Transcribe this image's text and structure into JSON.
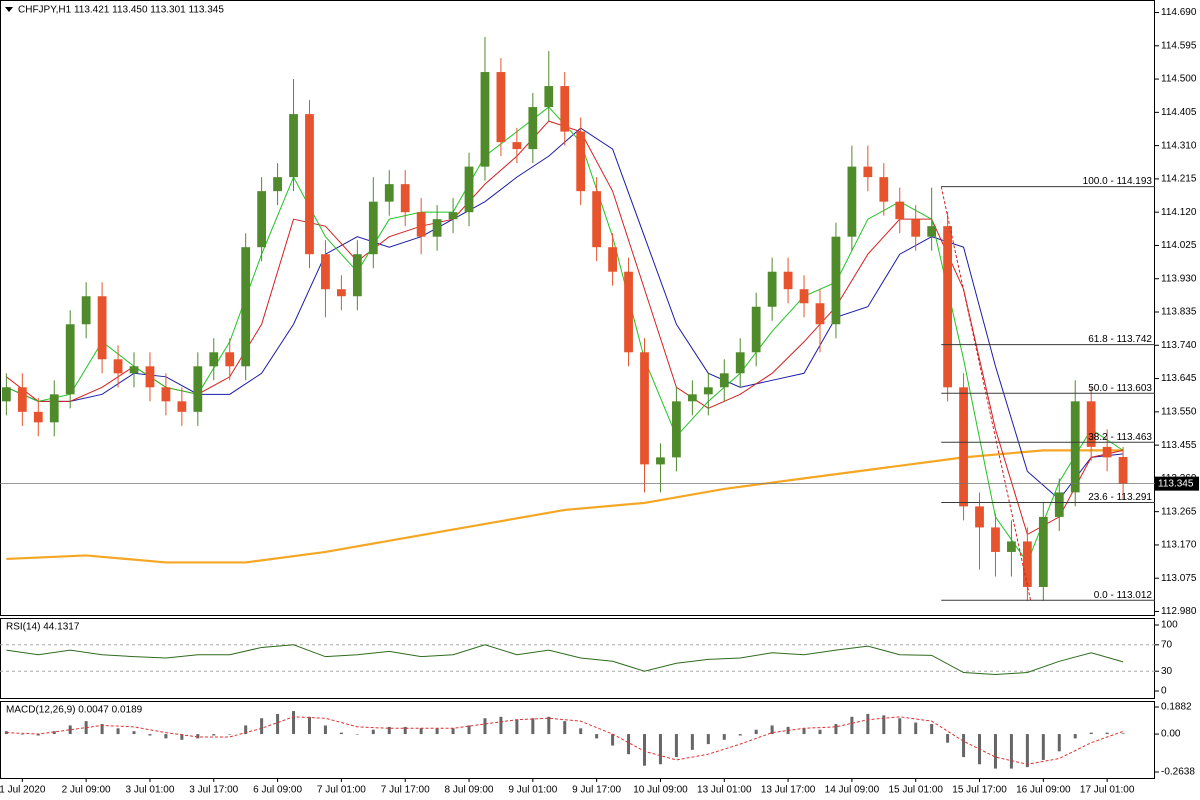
{
  "chart_data": [
    {
      "type": "candlestick",
      "title": "CHFJPY,H1  113.421 113.450 113.301 113.345",
      "x": [
        0,
        1,
        2,
        3,
        4,
        5,
        6,
        7,
        8,
        9,
        10,
        11,
        12,
        13,
        14,
        15,
        16,
        17,
        18,
        19,
        20,
        21,
        22,
        23,
        24,
        25,
        26,
        27,
        28,
        29,
        30,
        31,
        32,
        33,
        34,
        35,
        36,
        37,
        38,
        39,
        40,
        41,
        42,
        43,
        44,
        45,
        46,
        47,
        48,
        49,
        50,
        51,
        52,
        53,
        54,
        55,
        56,
        57,
        58,
        59,
        60,
        61,
        62,
        63,
        64,
        65,
        66,
        67,
        68,
        69,
        70
      ],
      "open": [
        113.58,
        113.62,
        113.55,
        113.52,
        113.6,
        113.8,
        113.88,
        113.7,
        113.66,
        113.68,
        113.62,
        113.58,
        113.55,
        113.68,
        113.72,
        113.68,
        114.02,
        114.18,
        114.22,
        114.4,
        114.0,
        113.9,
        113.88,
        114.0,
        114.15,
        114.2,
        114.12,
        114.05,
        114.1,
        114.12,
        114.25,
        114.52,
        114.32,
        114.3,
        114.42,
        114.48,
        114.35,
        114.18,
        114.02,
        113.95,
        113.72,
        113.4,
        113.42,
        113.58,
        113.6,
        113.62,
        113.66,
        113.72,
        113.85,
        113.95,
        113.9,
        113.86,
        113.8,
        114.05,
        114.25,
        114.22,
        114.15,
        114.1,
        114.05,
        114.08,
        113.62,
        113.28,
        113.22,
        113.15,
        113.18,
        113.05,
        113.25,
        113.32,
        113.58,
        113.45,
        113.421
      ],
      "high": [
        113.66,
        113.66,
        113.59,
        113.64,
        113.84,
        113.92,
        113.92,
        113.74,
        113.72,
        113.72,
        113.66,
        113.62,
        113.72,
        113.76,
        113.76,
        114.06,
        114.22,
        114.26,
        114.5,
        114.44,
        114.04,
        113.94,
        114.04,
        114.22,
        114.24,
        114.24,
        114.16,
        114.14,
        114.16,
        114.29,
        114.62,
        114.56,
        114.36,
        114.46,
        114.58,
        114.52,
        114.39,
        114.22,
        114.06,
        113.99,
        113.76,
        113.46,
        113.62,
        113.64,
        113.66,
        113.7,
        113.76,
        113.89,
        113.99,
        113.99,
        113.94,
        113.9,
        114.09,
        114.31,
        114.31,
        114.26,
        114.19,
        114.14,
        114.19,
        114.12,
        113.66,
        113.32,
        113.26,
        113.24,
        113.22,
        113.29,
        113.36,
        113.64,
        113.62,
        113.5,
        113.45
      ],
      "low": [
        113.54,
        113.51,
        113.48,
        113.48,
        113.56,
        113.76,
        113.66,
        113.62,
        113.62,
        113.58,
        113.54,
        113.51,
        113.51,
        113.64,
        113.64,
        113.64,
        113.98,
        114.14,
        114.18,
        113.96,
        113.82,
        113.84,
        113.84,
        113.96,
        114.11,
        114.08,
        114.0,
        114.01,
        114.06,
        114.08,
        114.21,
        114.28,
        114.26,
        114.26,
        114.38,
        114.31,
        114.14,
        113.98,
        113.91,
        113.68,
        113.32,
        113.32,
        113.38,
        113.54,
        113.54,
        113.58,
        113.62,
        113.68,
        113.81,
        113.86,
        113.82,
        113.72,
        113.76,
        114.01,
        114.18,
        114.11,
        114.06,
        114.01,
        114.01,
        113.58,
        113.24,
        113.1,
        113.08,
        113.08,
        113.01,
        113.01,
        113.21,
        113.28,
        113.41,
        113.38,
        113.301
      ],
      "close": [
        113.62,
        113.55,
        113.52,
        113.6,
        113.8,
        113.88,
        113.7,
        113.66,
        113.68,
        113.62,
        113.58,
        113.55,
        113.68,
        113.72,
        113.68,
        114.02,
        114.18,
        114.22,
        114.4,
        114.0,
        113.9,
        113.88,
        114.0,
        114.15,
        114.2,
        114.12,
        114.05,
        114.1,
        114.12,
        114.25,
        114.52,
        114.32,
        114.3,
        114.42,
        114.48,
        114.35,
        114.18,
        114.02,
        113.95,
        113.72,
        113.4,
        113.42,
        113.58,
        113.6,
        113.62,
        113.66,
        113.72,
        113.85,
        113.95,
        113.9,
        113.86,
        113.8,
        114.05,
        114.25,
        114.22,
        114.15,
        114.1,
        114.05,
        114.08,
        113.62,
        113.28,
        113.22,
        113.15,
        113.18,
        113.05,
        113.25,
        113.32,
        113.58,
        113.45,
        113.42,
        113.345
      ],
      "up_color": "#4f8a2b",
      "down_color": "#e6532c",
      "lines": [
        {
          "color": "#f5a623",
          "width": 2.2,
          "x": [
            0,
            5,
            10,
            15,
            20,
            25,
            30,
            35,
            40,
            45,
            50,
            55,
            60,
            65,
            70
          ],
          "values": [
            113.13,
            113.14,
            113.12,
            113.12,
            113.15,
            113.19,
            113.23,
            113.27,
            113.29,
            113.33,
            113.36,
            113.39,
            113.42,
            113.44,
            113.44
          ]
        },
        {
          "color": "#1c1ca8",
          "width": 1,
          "x": [
            0,
            2,
            4,
            6,
            8,
            10,
            12,
            14,
            16,
            18,
            20,
            22,
            24,
            26,
            28,
            30,
            32,
            34,
            36,
            38,
            40,
            42,
            44,
            46,
            48,
            50,
            52,
            54,
            56,
            58,
            60,
            62,
            64,
            66,
            68,
            70
          ],
          "values": [
            113.62,
            113.58,
            113.58,
            113.6,
            113.66,
            113.65,
            113.6,
            113.6,
            113.66,
            113.8,
            114.0,
            114.05,
            114.02,
            114.05,
            114.1,
            114.15,
            114.22,
            114.28,
            114.36,
            114.3,
            114.05,
            113.8,
            113.66,
            113.62,
            113.64,
            113.66,
            113.82,
            113.85,
            114.0,
            114.05,
            114.02,
            113.68,
            113.38,
            113.3,
            113.42,
            113.43
          ]
        },
        {
          "color": "#d42020",
          "width": 1,
          "x": [
            0,
            2,
            4,
            6,
            8,
            10,
            12,
            14,
            16,
            18,
            20,
            22,
            24,
            26,
            28,
            30,
            32,
            34,
            36,
            38,
            40,
            42,
            44,
            46,
            48,
            50,
            52,
            54,
            56,
            58,
            60,
            62,
            64,
            66,
            68,
            70
          ],
          "values": [
            113.65,
            113.58,
            113.58,
            113.62,
            113.68,
            113.62,
            113.6,
            113.65,
            113.8,
            114.1,
            114.08,
            113.98,
            114.05,
            114.08,
            114.1,
            114.2,
            114.28,
            114.38,
            114.35,
            114.18,
            113.9,
            113.62,
            113.56,
            113.6,
            113.66,
            113.75,
            113.85,
            114.0,
            114.1,
            114.1,
            113.9,
            113.5,
            113.2,
            113.25,
            113.42,
            113.44
          ]
        },
        {
          "color": "#22c322",
          "width": 1,
          "x": [
            0,
            2,
            4,
            6,
            8,
            10,
            12,
            14,
            16,
            18,
            20,
            22,
            24,
            26,
            28,
            30,
            32,
            34,
            36,
            38,
            40,
            42,
            44,
            46,
            48,
            50,
            52,
            54,
            56,
            58,
            60,
            62,
            64,
            66,
            68,
            70
          ],
          "values": [
            113.62,
            113.58,
            113.6,
            113.75,
            113.68,
            113.62,
            113.6,
            113.75,
            114.0,
            114.22,
            114.05,
            113.95,
            114.1,
            114.12,
            114.12,
            114.28,
            114.35,
            114.42,
            114.32,
            114.05,
            113.7,
            113.48,
            113.58,
            113.66,
            113.78,
            113.88,
            113.92,
            114.1,
            114.15,
            114.1,
            113.7,
            113.25,
            113.12,
            113.35,
            113.5,
            113.44
          ]
        }
      ],
      "trendline": {
        "color": "#d42020",
        "x": [
          58.6,
          64.2
        ],
        "values": [
          114.193,
          113.012
        ]
      },
      "fib_levels": [
        {
          "value": 114.193,
          "label": "100.0 - 114.193"
        },
        {
          "value": 113.742,
          "label": "61.8 - 113.742"
        },
        {
          "value": 113.603,
          "label": "50.0 - 113.603"
        },
        {
          "value": 113.463,
          "label": "38.2 - 113.463"
        },
        {
          "value": 113.291,
          "label": "23.6 - 113.291"
        },
        {
          "value": 113.012,
          "label": "0.0 - 113.012"
        }
      ],
      "last_price": 113.345,
      "xlim": [
        -0.4,
        72
      ],
      "ylim": [
        112.97,
        114.72
      ],
      "yticks": [
        {
          "value": 112.98,
          "label": "112.980"
        },
        {
          "value": 113.075,
          "label": "113.075"
        },
        {
          "value": 113.17,
          "label": "113.170"
        },
        {
          "value": 113.265,
          "label": "113.265"
        },
        {
          "value": 113.36,
          "label": "113.360"
        },
        {
          "value": 113.455,
          "label": "113.455"
        },
        {
          "value": 113.55,
          "label": "113.550"
        },
        {
          "value": 113.645,
          "label": "113.645"
        },
        {
          "value": 113.74,
          "label": "113.740"
        },
        {
          "value": 113.835,
          "label": "113.835"
        },
        {
          "value": 113.93,
          "label": "113.930"
        },
        {
          "value": 114.025,
          "label": "114.025"
        },
        {
          "value": 114.12,
          "label": "114.120"
        },
        {
          "value": 114.215,
          "label": "114.215"
        },
        {
          "value": 114.31,
          "label": "114.310"
        },
        {
          "value": 114.405,
          "label": "114.405"
        },
        {
          "value": 114.5,
          "label": "114.500"
        },
        {
          "value": 114.595,
          "label": "114.595"
        },
        {
          "value": 114.69,
          "label": "114.690"
        }
      ]
    },
    {
      "type": "line",
      "title": "RSI(14) 44.1317",
      "x": [
        0,
        2,
        4,
        6,
        8,
        10,
        12,
        14,
        16,
        18,
        20,
        22,
        24,
        26,
        28,
        30,
        32,
        34,
        36,
        38,
        40,
        42,
        44,
        46,
        48,
        50,
        52,
        54,
        56,
        58,
        60,
        62,
        64,
        66,
        68,
        70
      ],
      "values": [
        62,
        55,
        62,
        55,
        52,
        50,
        55,
        55,
        66,
        70,
        52,
        55,
        60,
        52,
        55,
        70,
        55,
        62,
        50,
        45,
        30,
        42,
        48,
        50,
        58,
        55,
        62,
        68,
        55,
        54,
        28,
        25,
        28,
        45,
        58,
        44.1317
      ],
      "color": "#2e6b1e",
      "levels": [
        30,
        70
      ],
      "xlim": [
        -0.4,
        72
      ],
      "ylim": [
        0,
        100
      ],
      "yticks": [
        0,
        30,
        70,
        100
      ]
    },
    {
      "type": "macd",
      "title": "MACD(12,26,9) 0.0047 0.0189",
      "x": [
        0,
        1,
        2,
        3,
        4,
        5,
        6,
        7,
        8,
        9,
        10,
        11,
        12,
        13,
        14,
        15,
        16,
        17,
        18,
        19,
        20,
        21,
        22,
        23,
        24,
        25,
        26,
        27,
        28,
        29,
        30,
        31,
        32,
        33,
        34,
        35,
        36,
        37,
        38,
        39,
        40,
        41,
        42,
        43,
        44,
        45,
        46,
        47,
        48,
        49,
        50,
        51,
        52,
        53,
        54,
        55,
        56,
        57,
        58,
        59,
        60,
        61,
        62,
        63,
        64,
        65,
        66,
        67,
        68,
        69,
        70
      ],
      "values": [
        0.02,
        0.0,
        -0.01,
        0.02,
        0.06,
        0.09,
        0.07,
        0.04,
        0.02,
        -0.01,
        -0.03,
        -0.04,
        -0.03,
        -0.01,
        0.0,
        0.06,
        0.11,
        0.14,
        0.16,
        0.12,
        0.06,
        0.01,
        0.0,
        0.03,
        0.05,
        0.05,
        0.04,
        0.04,
        0.04,
        0.06,
        0.11,
        0.12,
        0.1,
        0.11,
        0.12,
        0.09,
        0.04,
        -0.03,
        -0.08,
        -0.14,
        -0.22,
        -0.21,
        -0.16,
        -0.11,
        -0.07,
        -0.04,
        -0.01,
        0.03,
        0.06,
        0.05,
        0.04,
        0.03,
        0.07,
        0.12,
        0.14,
        0.13,
        0.11,
        0.08,
        0.07,
        -0.06,
        -0.16,
        -0.21,
        -0.24,
        -0.24,
        -0.23,
        -0.18,
        -0.12,
        -0.03,
        0.01,
        0.01,
        0.0047
      ],
      "color": "#666666",
      "signal": {
        "color": "#e03030",
        "x": [
          0,
          2,
          4,
          6,
          8,
          10,
          12,
          14,
          16,
          18,
          20,
          22,
          24,
          26,
          28,
          30,
          32,
          34,
          36,
          38,
          40,
          42,
          44,
          46,
          48,
          50,
          52,
          54,
          56,
          58,
          60,
          62,
          64,
          66,
          68,
          70
        ],
        "values": [
          0.01,
          0.0,
          0.03,
          0.06,
          0.05,
          0.01,
          -0.02,
          -0.02,
          0.04,
          0.12,
          0.11,
          0.05,
          0.04,
          0.04,
          0.04,
          0.07,
          0.1,
          0.11,
          0.09,
          0.0,
          -0.12,
          -0.18,
          -0.14,
          -0.07,
          0.01,
          0.04,
          0.05,
          0.1,
          0.12,
          0.09,
          -0.05,
          -0.16,
          -0.21,
          -0.17,
          -0.06,
          0.0189
        ]
      },
      "xlim": [
        -0.4,
        72
      ],
      "ylim": [
        -0.2638,
        0.1882
      ],
      "yticks": [
        -0.2638,
        {
          "value": 0,
          "label": "0.00"
        },
        0.1882
      ],
      "xticks": [
        {
          "value": 1,
          "label": "1 Jul 2020"
        },
        {
          "value": 5,
          "label": "2 Jul 09:00"
        },
        {
          "value": 9,
          "label": "3 Jul 01:00"
        },
        {
          "value": 13,
          "label": "3 Jul 17:00"
        },
        {
          "value": 17,
          "label": "6 Jul 09:00"
        },
        {
          "value": 21,
          "label": "7 Jul 01:00"
        },
        {
          "value": 25,
          "label": "7 Jul 17:00"
        },
        {
          "value": 29,
          "label": "8 Jul 09:00"
        },
        {
          "value": 33,
          "label": "9 Jul 01:00"
        },
        {
          "value": 37,
          "label": "9 Jul 17:00"
        },
        {
          "value": 41,
          "label": "10 Jul 09:00"
        },
        {
          "value": 45,
          "label": "13 Jul 01:00"
        },
        {
          "value": 49,
          "label": "13 Jul 17:00"
        },
        {
          "value": 53,
          "label": "14 Jul 09:00"
        },
        {
          "value": 57,
          "label": "15 Jul 01:00"
        },
        {
          "value": 61,
          "label": "15 Jul 17:00"
        },
        {
          "value": 65,
          "label": "16 Jul 09:00"
        },
        {
          "value": 69,
          "label": "17 Jul 01:00"
        }
      ]
    }
  ]
}
